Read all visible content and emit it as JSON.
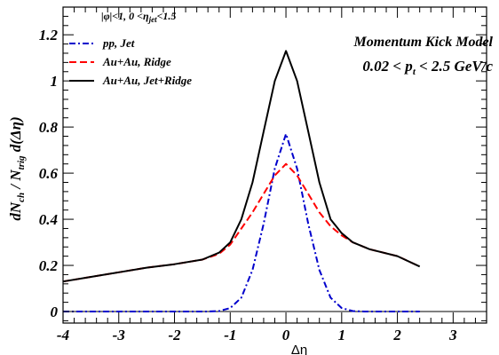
{
  "chart_data": {
    "type": "line",
    "title": "",
    "xlabel": "Δη",
    "ylabel_parts": {
      "main": "dN",
      "ch": "ch",
      "slash": " / N",
      "trig": "trig",
      "tail": " d(Δη)"
    },
    "xlim": [
      -4,
      3.6
    ],
    "ylim": [
      -0.05,
      1.32
    ],
    "x_ticks": [
      -4,
      -3,
      -2,
      -1,
      0,
      1,
      2,
      3
    ],
    "y_ticks": [
      0,
      0.2,
      0.4,
      0.6,
      0.8,
      1,
      1.2
    ],
    "x_tick_labels": [
      "-4",
      "-3",
      "-2",
      "-1",
      "0",
      "1",
      "2",
      "3"
    ],
    "y_tick_labels": [
      "0",
      "0.2",
      "0.4",
      "0.6",
      "0.8",
      "1",
      "1.2"
    ],
    "zero_line": true,
    "grid": false,
    "legend": {
      "position": "top-left",
      "header": {
        "phi": "|φ|<1,  0 <η",
        "jet": "jet",
        "tail": "<1.5"
      },
      "entries": [
        "pp, Jet",
        "Au+Au, Ridge",
        "Au+Au, Jet+Ridge"
      ]
    },
    "annotations": {
      "model": "Momentum Kick Model",
      "pt_range": {
        "pre": "0.02 < p",
        "sub": "t",
        "post": " < 2.5 GeV/c"
      }
    },
    "series": [
      {
        "name": "pp, Jet",
        "color": "#0000cc",
        "style": "dashdot",
        "x": [
          -4,
          -2,
          -1.4,
          -1.2,
          -1.0,
          -0.8,
          -0.6,
          -0.4,
          -0.2,
          0,
          0.2,
          0.4,
          0.6,
          0.8,
          1.0,
          1.2,
          1.4,
          2,
          2.4
        ],
        "y": [
          0,
          0,
          0,
          0.002,
          0.015,
          0.06,
          0.18,
          0.38,
          0.62,
          0.77,
          0.62,
          0.38,
          0.18,
          0.06,
          0.015,
          0.002,
          0,
          0,
          0
        ]
      },
      {
        "name": "Au+Au, Ridge",
        "color": "#ff0000",
        "style": "dashed",
        "x": [
          -4,
          -3.5,
          -3,
          -2.5,
          -2,
          -1.5,
          -1.2,
          -1.0,
          -0.8,
          -0.6,
          -0.4,
          -0.2,
          0,
          0.2,
          0.4,
          0.6,
          0.8,
          1.0,
          1.2,
          1.5,
          2,
          2.4
        ],
        "y": [
          0.13,
          0.15,
          0.17,
          0.19,
          0.205,
          0.225,
          0.25,
          0.29,
          0.36,
          0.43,
          0.51,
          0.59,
          0.64,
          0.59,
          0.51,
          0.43,
          0.37,
          0.33,
          0.3,
          0.27,
          0.24,
          0.195
        ]
      },
      {
        "name": "Au+Au, Jet+Ridge",
        "color": "#000000",
        "style": "solid",
        "x": [
          -4,
          -3.5,
          -3,
          -2.5,
          -2,
          -1.5,
          -1.2,
          -1.0,
          -0.8,
          -0.6,
          -0.4,
          -0.2,
          0,
          0.2,
          0.4,
          0.6,
          0.8,
          1.0,
          1.2,
          1.5,
          2,
          2.4
        ],
        "y": [
          0.13,
          0.15,
          0.17,
          0.19,
          0.205,
          0.225,
          0.255,
          0.3,
          0.4,
          0.56,
          0.78,
          1.0,
          1.13,
          1.0,
          0.78,
          0.56,
          0.4,
          0.34,
          0.3,
          0.27,
          0.24,
          0.195
        ]
      }
    ]
  }
}
